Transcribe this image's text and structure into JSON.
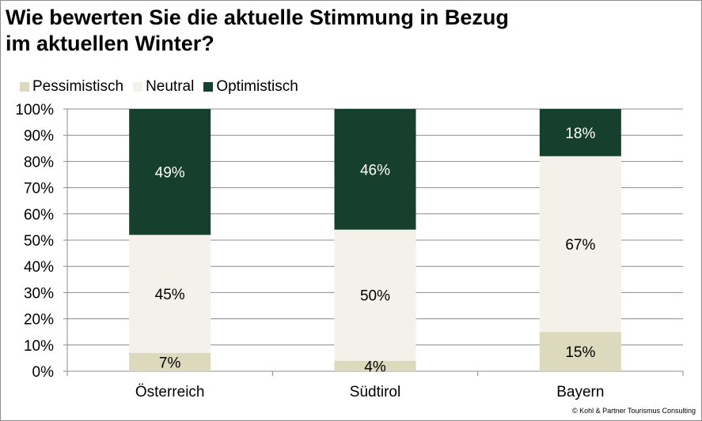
{
  "title_lines": [
    "Wie bewerten Sie die aktuelle Stimmung in Bezug",
    "im aktuellen Winter?"
  ],
  "copyright": "© Kohl & Partner Tourismus Consulting",
  "colors": {
    "pessimistisch": "#ddd9bd",
    "neutral": "#f3f1ea",
    "optimistisch": "#173f2e",
    "grid": "#8c8c8c",
    "axis": "#8c8c8c"
  },
  "chart_data": {
    "type": "bar",
    "stacked": true,
    "categories": [
      "Österreich",
      "Südtirol",
      "Bayern"
    ],
    "series": [
      {
        "name": "Pessimistisch",
        "values": [
          7,
          4,
          15
        ],
        "labels": [
          "7%",
          "4%",
          "15%"
        ],
        "color": "#ddd9bd",
        "label_color": "#000000"
      },
      {
        "name": "Neutral",
        "values": [
          45,
          50,
          67
        ],
        "labels": [
          "45%",
          "50%",
          "67%"
        ],
        "color": "#f3f1ea",
        "label_color": "#000000"
      },
      {
        "name": "Optimistisch",
        "values": [
          49,
          46,
          18
        ],
        "labels": [
          "49%",
          "46%",
          "18%"
        ],
        "color": "#173f2e",
        "label_color": "#ffffff"
      }
    ],
    "ylim": [
      0,
      100
    ],
    "yticks": [
      0,
      10,
      20,
      30,
      40,
      50,
      60,
      70,
      80,
      90,
      100
    ],
    "ytick_labels": [
      "0%",
      "10%",
      "20%",
      "30%",
      "40%",
      "50%",
      "60%",
      "70%",
      "80%",
      "90%",
      "100%"
    ],
    "grid": true,
    "legend_position": "top-left"
  }
}
